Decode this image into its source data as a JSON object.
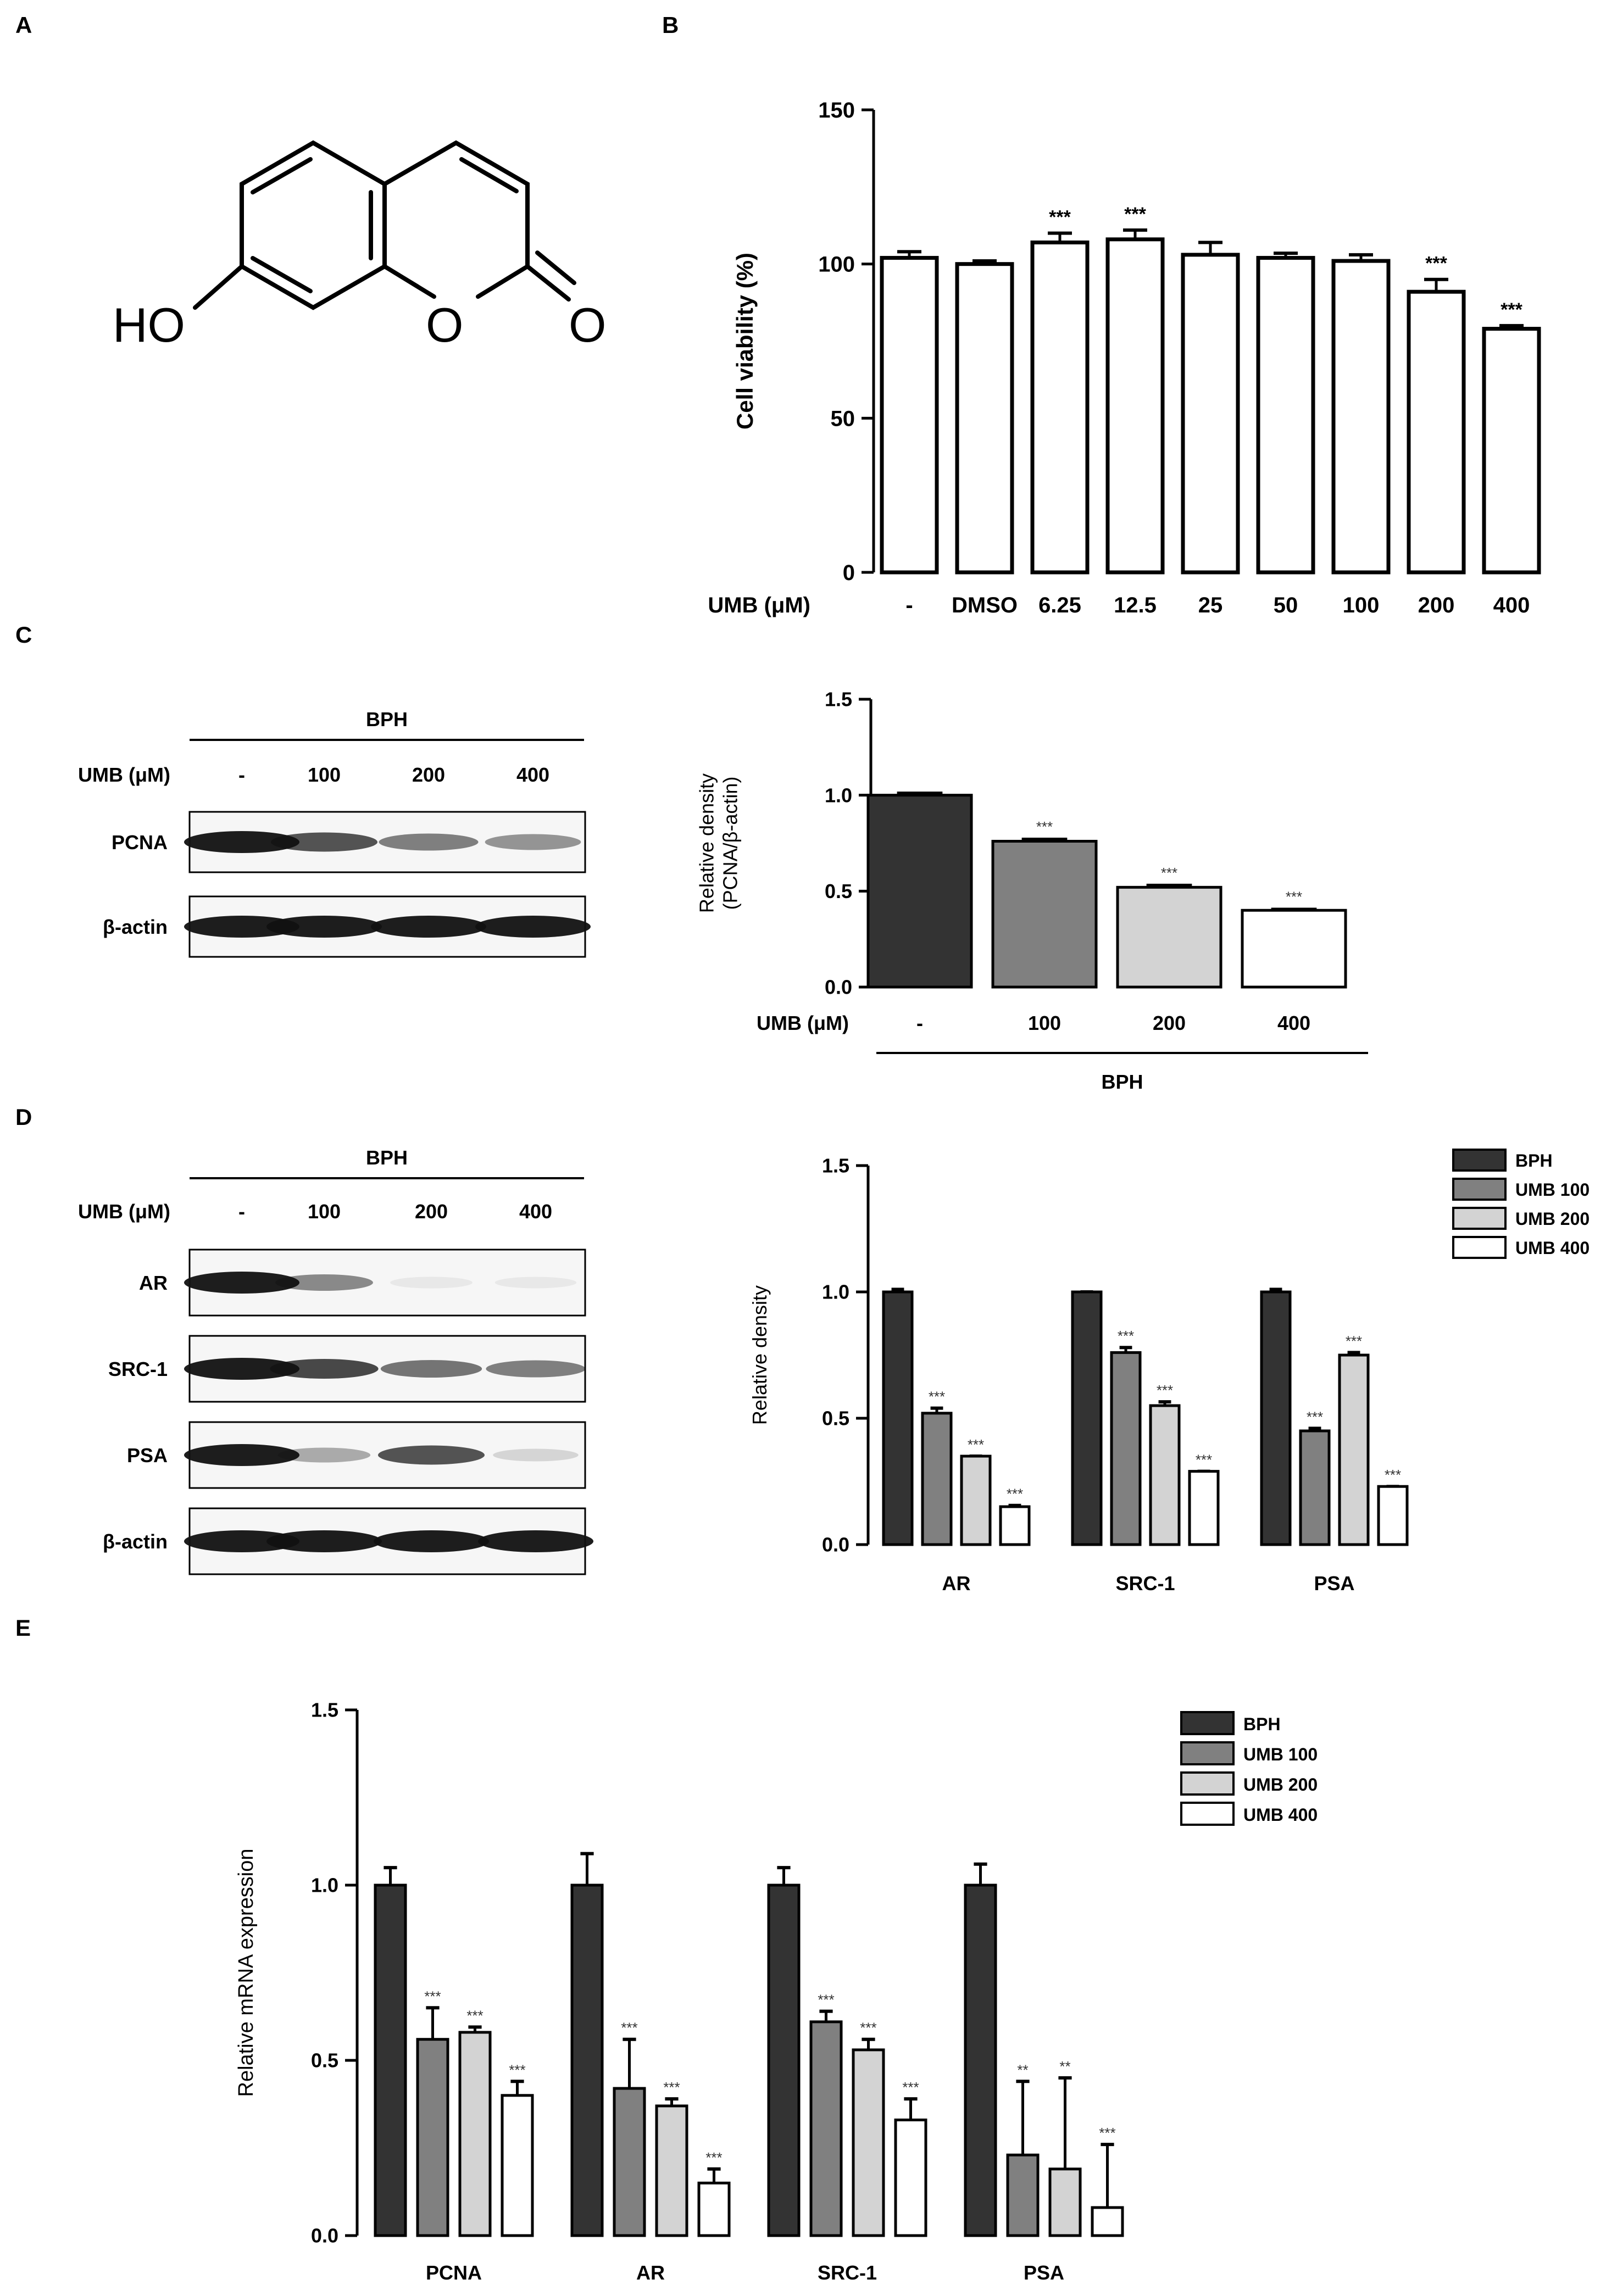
{
  "panels": {
    "A": {
      "letter": "A",
      "structure": {
        "hydroxyl_label": "HO",
        "ring_oxygen_label": "O",
        "carbonyl_oxygen_label": "O"
      }
    },
    "B": {
      "letter": "B"
    },
    "C": {
      "letter": "C"
    },
    "D": {
      "letter": "D"
    },
    "E": {
      "letter": "E"
    }
  },
  "blots": {
    "C": {
      "group_label": "BPH",
      "row_label": "UMB (μM)",
      "lanes": [
        "-",
        "100",
        "200",
        "400"
      ],
      "bands": [
        {
          "name": "PCNA",
          "intensity": [
            1.0,
            0.75,
            0.55,
            0.45
          ]
        },
        {
          "name": "β-actin",
          "intensity": [
            1.0,
            1.0,
            1.0,
            1.0
          ]
        }
      ]
    },
    "D": {
      "group_label": "BPH",
      "row_label": "UMB (μM)",
      "lanes": [
        "-",
        "100",
        "200",
        "400"
      ],
      "bands": [
        {
          "name": "AR",
          "intensity": [
            1.0,
            0.5,
            0.06,
            0.04
          ]
        },
        {
          "name": "SRC-1",
          "intensity": [
            1.0,
            0.8,
            0.6,
            0.55
          ]
        },
        {
          "name": "PSA",
          "intensity": [
            1.0,
            0.35,
            0.75,
            0.15
          ]
        },
        {
          "name": "β-actin",
          "intensity": [
            1.0,
            1.0,
            1.0,
            1.0
          ]
        }
      ]
    }
  },
  "chart_data": [
    {
      "id": "B",
      "type": "bar",
      "ylabel": "Cell viability (%)",
      "row_label": "UMB (μM)",
      "ylim": [
        0,
        150
      ],
      "yticks": [
        "0",
        "50",
        "100",
        "150"
      ],
      "categories": [
        "-",
        "DMSO",
        "6.25",
        "12.5",
        "25",
        "50",
        "100",
        "200",
        "400"
      ],
      "values": [
        102,
        100,
        107,
        108,
        103,
        102,
        101,
        91,
        79
      ],
      "errors": [
        2,
        1,
        3,
        3,
        4,
        1.5,
        2,
        4,
        1
      ],
      "significance": [
        "",
        "",
        "***",
        "***",
        "",
        "",
        "",
        "***",
        "***"
      ],
      "colors": [
        "#ffffff"
      ]
    },
    {
      "id": "C",
      "type": "bar",
      "ylabel": "Relative density",
      "ylabel2": "(PCNA/β-actin)",
      "row_label": "UMB (μM)",
      "group_label": "BPH",
      "ylim": [
        0,
        1.5
      ],
      "yticks": [
        "0.0",
        "0.5",
        "1.0",
        "1.5"
      ],
      "categories": [
        "-",
        "100",
        "200",
        "400"
      ],
      "values": [
        1.0,
        0.76,
        0.52,
        0.4
      ],
      "errors": [
        0.01,
        0.01,
        0.01,
        0.005
      ],
      "significance": [
        "",
        "***",
        "***",
        "***"
      ],
      "colors": [
        "#333333",
        "#808080",
        "#d3d3d3",
        "#ffffff"
      ]
    },
    {
      "id": "D",
      "type": "bar",
      "ylabel": "Relative density",
      "ylim": [
        0,
        1.5
      ],
      "yticks": [
        "0.0",
        "0.5",
        "1.0",
        "1.5"
      ],
      "categories": [
        "AR",
        "SRC-1",
        "PSA"
      ],
      "series": [
        {
          "name": "BPH",
          "color": "#333333",
          "values": [
            1.0,
            1.0,
            1.0
          ],
          "errors": [
            0.01,
            0.0,
            0.01
          ],
          "significance": [
            "",
            "",
            ""
          ]
        },
        {
          "name": "UMB 100",
          "color": "#808080",
          "values": [
            0.52,
            0.76,
            0.45
          ],
          "errors": [
            0.02,
            0.02,
            0.01
          ],
          "significance": [
            "***",
            "***",
            "***"
          ]
        },
        {
          "name": "UMB 200",
          "color": "#d3d3d3",
          "values": [
            0.35,
            0.55,
            0.75
          ],
          "errors": [
            0.0,
            0.015,
            0.01
          ],
          "significance": [
            "***",
            "***",
            "***"
          ]
        },
        {
          "name": "UMB 400",
          "color": "#ffffff",
          "values": [
            0.15,
            0.29,
            0.23
          ],
          "errors": [
            0.005,
            0.0,
            0.0
          ],
          "significance": [
            "***",
            "***",
            "***"
          ]
        }
      ],
      "legend": "top-right"
    },
    {
      "id": "E",
      "type": "bar",
      "ylabel": "Relative mRNA expression",
      "ylim": [
        0,
        1.5
      ],
      "yticks": [
        "0.0",
        "0.5",
        "1.0",
        "1.5"
      ],
      "categories": [
        "PCNA",
        "AR",
        "SRC-1",
        "PSA"
      ],
      "series": [
        {
          "name": "BPH",
          "color": "#333333",
          "values": [
            1.0,
            1.0,
            1.0,
            1.0
          ],
          "errors": [
            0.05,
            0.09,
            0.05,
            0.06
          ],
          "significance": [
            "",
            "",
            "",
            ""
          ]
        },
        {
          "name": "UMB 100",
          "color": "#808080",
          "values": [
            0.56,
            0.42,
            0.61,
            0.23
          ],
          "errors": [
            0.09,
            0.14,
            0.03,
            0.21
          ],
          "significance": [
            "***",
            "***",
            "***",
            "**"
          ]
        },
        {
          "name": "UMB 200",
          "color": "#d3d3d3",
          "values": [
            0.58,
            0.37,
            0.53,
            0.19
          ],
          "errors": [
            0.015,
            0.02,
            0.03,
            0.26
          ],
          "significance": [
            "***",
            "***",
            "***",
            "**"
          ]
        },
        {
          "name": "UMB 400",
          "color": "#ffffff",
          "values": [
            0.4,
            0.15,
            0.33,
            0.08
          ],
          "errors": [
            0.04,
            0.04,
            0.06,
            0.18
          ],
          "significance": [
            "***",
            "***",
            "***",
            "***"
          ]
        }
      ],
      "legend": "top-right"
    }
  ]
}
